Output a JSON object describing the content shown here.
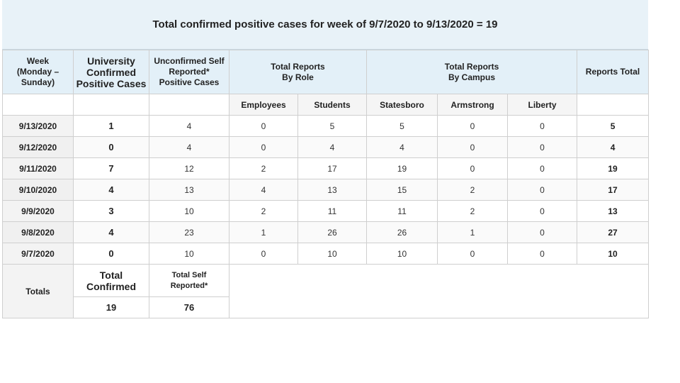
{
  "title": "Total confirmed positive cases for week of 9/7/2020 to 9/13/2020 = 19",
  "headers": {
    "week": [
      "Week",
      "(Monday –",
      "Sunday)"
    ],
    "university": [
      "University",
      "Confirmed",
      "Positive Cases"
    ],
    "unconfirmed": [
      "Unconfirmed Self",
      "Reported*",
      "Positive Cases"
    ],
    "by_role": [
      "Total Reports",
      "By Role"
    ],
    "by_campus": [
      "Total Reports",
      "By Campus"
    ],
    "reports_total": "Reports Total"
  },
  "subheaders": {
    "employees": "Employees",
    "students": "Students",
    "statesboro": "Statesboro",
    "armstrong": "Armstrong",
    "liberty": "Liberty"
  },
  "rows": [
    {
      "date": "9/13/2020",
      "confirmed": "1",
      "self": "4",
      "employees": "0",
      "students": "5",
      "statesboro": "5",
      "armstrong": "0",
      "liberty": "0",
      "total": "5"
    },
    {
      "date": "9/12/2020",
      "confirmed": "0",
      "self": "4",
      "employees": "0",
      "students": "4",
      "statesboro": "4",
      "armstrong": "0",
      "liberty": "0",
      "total": "4"
    },
    {
      "date": "9/11/2020",
      "confirmed": "7",
      "self": "12",
      "employees": "2",
      "students": "17",
      "statesboro": "19",
      "armstrong": "0",
      "liberty": "0",
      "total": "19"
    },
    {
      "date": "9/10/2020",
      "confirmed": "4",
      "self": "13",
      "employees": "4",
      "students": "13",
      "statesboro": "15",
      "armstrong": "2",
      "liberty": "0",
      "total": "17"
    },
    {
      "date": "9/9/2020",
      "confirmed": "3",
      "self": "10",
      "employees": "2",
      "students": "11",
      "statesboro": "11",
      "armstrong": "2",
      "liberty": "0",
      "total": "13"
    },
    {
      "date": "9/8/2020",
      "confirmed": "4",
      "self": "23",
      "employees": "1",
      "students": "26",
      "statesboro": "26",
      "armstrong": "1",
      "liberty": "0",
      "total": "27"
    },
    {
      "date": "9/7/2020",
      "confirmed": "0",
      "self": "10",
      "employees": "0",
      "students": "10",
      "statesboro": "10",
      "armstrong": "0",
      "liberty": "0",
      "total": "10"
    }
  ],
  "totals": {
    "label": "Totals",
    "confirmed_header": [
      "Total",
      "Confirmed"
    ],
    "self_header": [
      "Total Self",
      "Reported*"
    ],
    "confirmed_value": "19",
    "self_value": "76"
  }
}
